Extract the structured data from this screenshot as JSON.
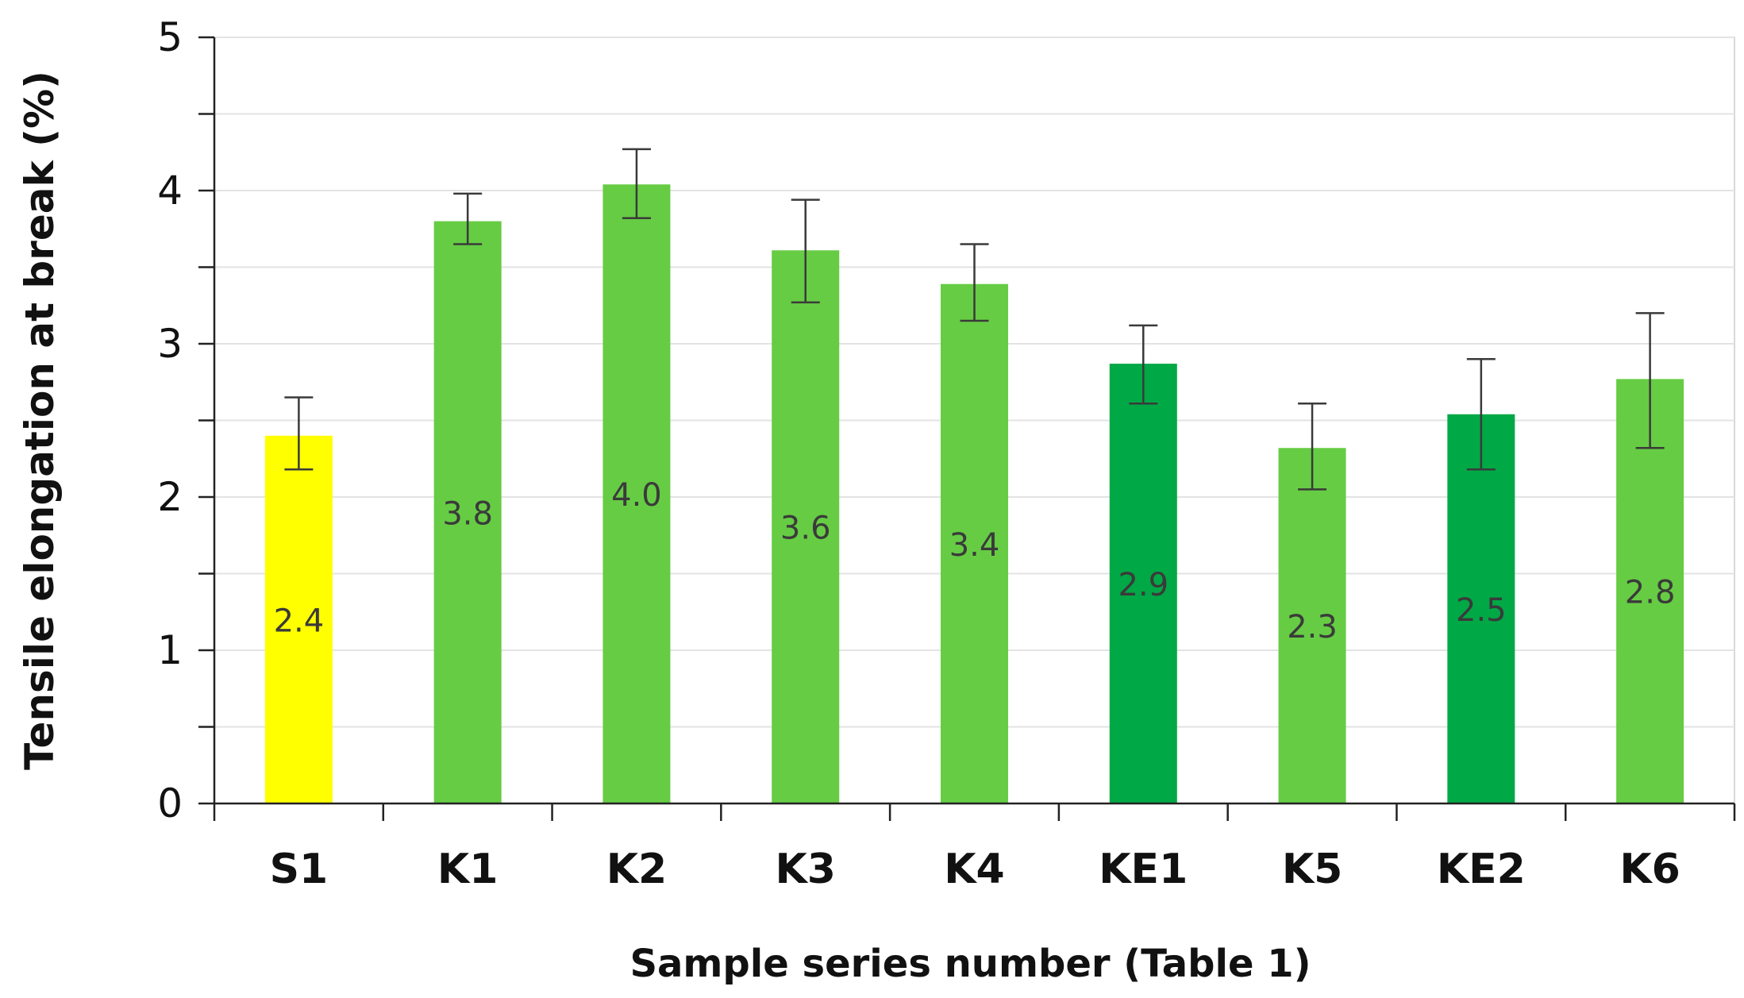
{
  "chart_data": {
    "type": "bar",
    "title": "",
    "xlabel": "Sample series  number (Table 1)",
    "ylabel": "Tensile elongation at break (%)",
    "ylim": [
      0,
      5
    ],
    "y_ticks": [
      "0",
      "1",
      "2",
      "3",
      "4",
      "5"
    ],
    "y_minor_step": 0.5,
    "grid": true,
    "legend": "none",
    "categories": [
      "S1",
      "K1",
      "K2",
      "K3",
      "K4",
      "KE1",
      "K5",
      "KE2",
      "K6"
    ],
    "values": [
      2.4,
      3.8,
      4.04,
      3.61,
      3.39,
      2.87,
      2.32,
      2.54,
      2.77
    ],
    "data_labels": [
      "2.4",
      "3.8",
      "4.0",
      "3.6",
      "3.4",
      "2.9",
      "2.3",
      "2.5",
      "2.8"
    ],
    "error_low": [
      2.18,
      3.65,
      3.82,
      3.27,
      3.15,
      2.61,
      2.05,
      2.18,
      2.32
    ],
    "error_high": [
      2.65,
      3.98,
      4.27,
      3.94,
      3.65,
      3.12,
      2.61,
      2.9,
      3.2
    ],
    "bar_colors": [
      "#ffff00",
      "#66cc44",
      "#66cc44",
      "#66cc44",
      "#66cc44",
      "#00a846",
      "#66cc44",
      "#00a846",
      "#66cc44"
    ]
  }
}
